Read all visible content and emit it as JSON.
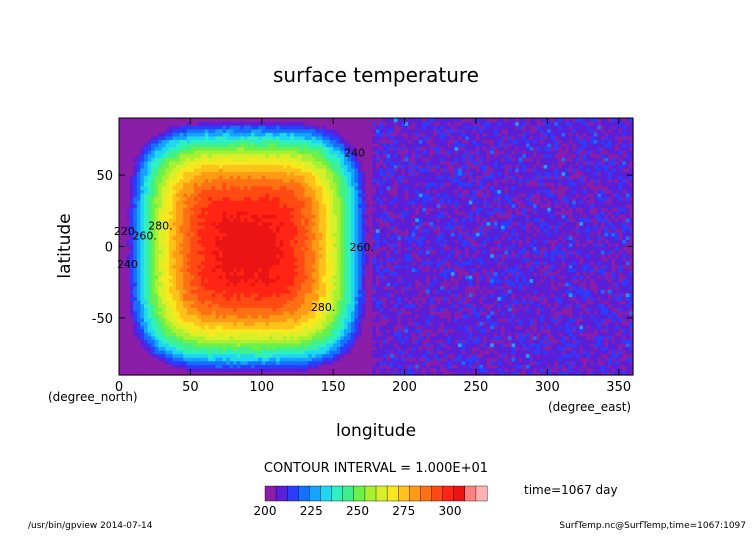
{
  "chart_data": {
    "type": "heatmap",
    "title": "surface temperature",
    "xlabel": "longitude",
    "ylabel": "latitude",
    "x_unit_label": "(degree_east)",
    "y_unit_label": "(degree_north)",
    "xlim": [
      0,
      360
    ],
    "ylim": [
      -90,
      90
    ],
    "x_ticks": [
      0,
      50,
      100,
      150,
      200,
      250,
      300,
      350
    ],
    "y_ticks": [
      -50,
      0,
      50
    ],
    "contour_interval_text": "CONTOUR INTERVAL = 1.000E+01",
    "time_text": "time=1067 day",
    "colorbar": {
      "min": 200,
      "max": 320,
      "ticks": [
        200,
        225,
        250,
        275,
        300
      ],
      "colors": [
        "#8a1ea8",
        "#5a1fd8",
        "#2a3cff",
        "#1670ff",
        "#14a4ff",
        "#1fd8f0",
        "#2ef0c0",
        "#40f08a",
        "#6cf04a",
        "#a8f032",
        "#d8f02a",
        "#f8e81e",
        "#ffc21a",
        "#ff9a14",
        "#ff7014",
        "#ff4a14",
        "#ff2414",
        "#ea1414",
        "#ff8080",
        "#ffb0b0"
      ]
    },
    "contour_labels": [
      {
        "text": "220.",
        "lon": 5,
        "lat": 8
      },
      {
        "text": "240",
        "lon": 6,
        "lat": -15
      },
      {
        "text": "260.",
        "lon": 18,
        "lat": 5
      },
      {
        "text": "280.",
        "lon": 29,
        "lat": 12
      },
      {
        "text": "240",
        "lon": 165,
        "lat": 63
      },
      {
        "text": "260.",
        "lon": 170,
        "lat": -3
      },
      {
        "text": "280.",
        "lon": 143,
        "lat": -45
      }
    ],
    "warm_region": {
      "description_values": "land around lon 10-175 warm; ocean lon 180-360 cold 200-215 K",
      "center_lon": 90,
      "center_lat": 0,
      "peak": 305
    }
  },
  "footer": {
    "left": "/usr/bin/gpview  2014-07-14",
    "right": "SurfTemp.nc@SurfTemp,time=1067:1097"
  }
}
